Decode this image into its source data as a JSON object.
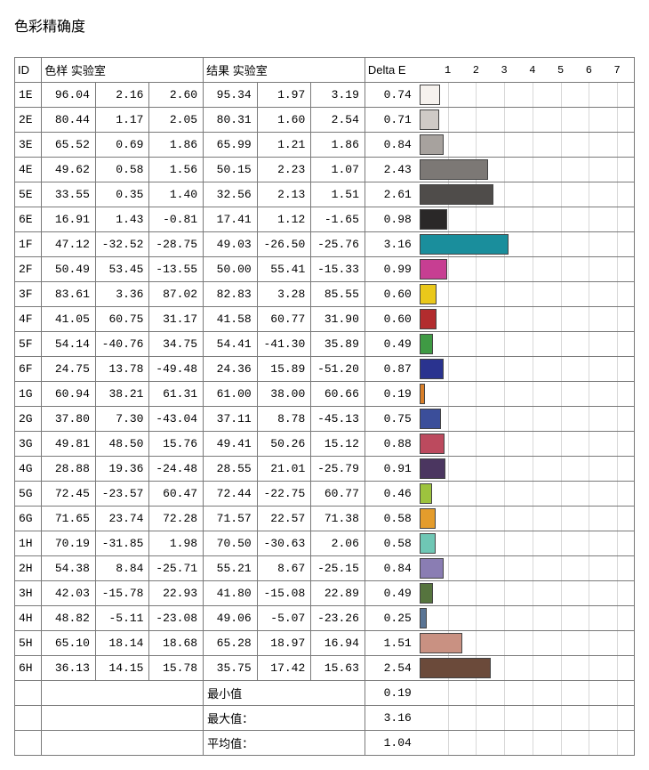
{
  "title": "色彩精确度",
  "headers": {
    "id": "ID",
    "sample": "色样 实验室",
    "result": "结果 实验室",
    "delta": "Delta E"
  },
  "chart": {
    "xmax": 7.5,
    "ticks": [
      1,
      2,
      3,
      4,
      5,
      6,
      7
    ],
    "grid_color": "#d8d8d8",
    "bar_border": "#444444"
  },
  "rows": [
    {
      "id": "1E",
      "s": [
        96.04,
        2.16,
        2.6
      ],
      "r": [
        95.34,
        1.97,
        3.19
      ],
      "d": 0.74,
      "color": "#f6f2ee"
    },
    {
      "id": "2E",
      "s": [
        80.44,
        1.17,
        2.05
      ],
      "r": [
        80.31,
        1.6,
        2.54
      ],
      "d": 0.71,
      "color": "#cfcac6"
    },
    {
      "id": "3E",
      "s": [
        65.52,
        0.69,
        1.86
      ],
      "r": [
        65.99,
        1.21,
        1.86
      ],
      "d": 0.84,
      "color": "#a7a29e"
    },
    {
      "id": "4E",
      "s": [
        49.62,
        0.58,
        1.56
      ],
      "r": [
        50.15,
        2.23,
        1.07
      ],
      "d": 2.43,
      "color": "#7c7875"
    },
    {
      "id": "5E",
      "s": [
        33.55,
        0.35,
        1.4
      ],
      "r": [
        32.56,
        2.13,
        1.51
      ],
      "d": 2.61,
      "color": "#4f4c4a"
    },
    {
      "id": "6E",
      "s": [
        16.91,
        1.43,
        -0.81
      ],
      "r": [
        17.41,
        1.12,
        -1.65
      ],
      "d": 0.98,
      "color": "#2a2828"
    },
    {
      "id": "1F",
      "s": [
        47.12,
        -32.52,
        -28.75
      ],
      "r": [
        49.03,
        -26.5,
        -25.76
      ],
      "d": 3.16,
      "color": "#1a8e9c"
    },
    {
      "id": "2F",
      "s": [
        50.49,
        53.45,
        -13.55
      ],
      "r": [
        50.0,
        55.41,
        -15.33
      ],
      "d": 0.99,
      "color": "#c73e92"
    },
    {
      "id": "3F",
      "s": [
        83.61,
        3.36,
        87.02
      ],
      "r": [
        82.83,
        3.28,
        85.55
      ],
      "d": 0.6,
      "color": "#eac81a"
    },
    {
      "id": "4F",
      "s": [
        41.05,
        60.75,
        31.17
      ],
      "r": [
        41.58,
        60.77,
        31.9
      ],
      "d": 0.6,
      "color": "#b22c2e"
    },
    {
      "id": "5F",
      "s": [
        54.14,
        -40.76,
        34.75
      ],
      "r": [
        54.41,
        -41.3,
        35.89
      ],
      "d": 0.49,
      "color": "#3f9a44"
    },
    {
      "id": "6F",
      "s": [
        24.75,
        13.78,
        -49.48
      ],
      "r": [
        24.36,
        15.89,
        -51.2
      ],
      "d": 0.87,
      "color": "#2a338f"
    },
    {
      "id": "1G",
      "s": [
        60.94,
        38.21,
        61.31
      ],
      "r": [
        61.0,
        38.0,
        60.66
      ],
      "d": 0.19,
      "color": "#d87f2a"
    },
    {
      "id": "2G",
      "s": [
        37.8,
        7.3,
        -43.04
      ],
      "r": [
        37.11,
        8.78,
        -45.13
      ],
      "d": 0.75,
      "color": "#3b4e9a"
    },
    {
      "id": "3G",
      "s": [
        49.81,
        48.5,
        15.76
      ],
      "r": [
        49.41,
        50.26,
        15.12
      ],
      "d": 0.88,
      "color": "#bc4a5e"
    },
    {
      "id": "4G",
      "s": [
        28.88,
        19.36,
        -24.48
      ],
      "r": [
        28.55,
        21.01,
        -25.79
      ],
      "d": 0.91,
      "color": "#4b3660"
    },
    {
      "id": "5G",
      "s": [
        72.45,
        -23.57,
        60.47
      ],
      "r": [
        72.44,
        -22.75,
        60.77
      ],
      "d": 0.46,
      "color": "#9dc33e"
    },
    {
      "id": "6G",
      "s": [
        71.65,
        23.74,
        72.28
      ],
      "r": [
        71.57,
        22.57,
        71.38
      ],
      "d": 0.58,
      "color": "#e49c2c"
    },
    {
      "id": "1H",
      "s": [
        70.19,
        -31.85,
        1.98
      ],
      "r": [
        70.5,
        -30.63,
        2.06
      ],
      "d": 0.58,
      "color": "#6fc7b5"
    },
    {
      "id": "2H",
      "s": [
        54.38,
        8.84,
        -25.71
      ],
      "r": [
        55.21,
        8.67,
        -25.15
      ],
      "d": 0.84,
      "color": "#8a7db3"
    },
    {
      "id": "3H",
      "s": [
        42.03,
        -15.78,
        22.93
      ],
      "r": [
        41.8,
        -15.08,
        22.89
      ],
      "d": 0.49,
      "color": "#56743e"
    },
    {
      "id": "4H",
      "s": [
        48.82,
        -5.11,
        -23.08
      ],
      "r": [
        49.06,
        -5.07,
        -23.26
      ],
      "d": 0.25,
      "color": "#5a7595"
    },
    {
      "id": "5H",
      "s": [
        65.1,
        18.14,
        18.68
      ],
      "r": [
        65.28,
        18.97,
        16.94
      ],
      "d": 1.51,
      "color": "#c99182"
    },
    {
      "id": "6H",
      "s": [
        36.13,
        14.15,
        15.78
      ],
      "r": [
        35.75,
        17.42,
        15.63
      ],
      "d": 2.54,
      "color": "#6b4a3a"
    }
  ],
  "summary": [
    {
      "label": "最小值",
      "value": 0.19
    },
    {
      "label": "最大值：",
      "value": 3.16
    },
    {
      "label": "平均值：",
      "value": 1.04
    }
  ]
}
